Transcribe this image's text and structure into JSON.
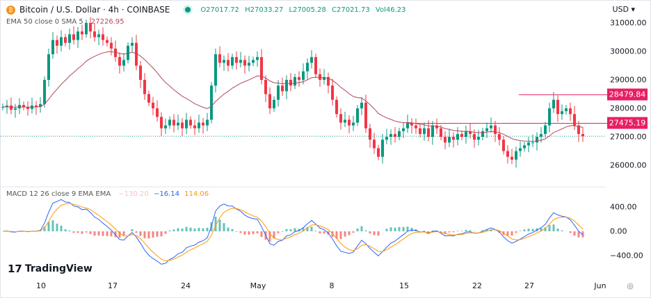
{
  "header": {
    "symbol": "Bitcoin / U.S. Dollar · 4h · COINBASE",
    "open": "O27017.72",
    "high": "H27033.27",
    "low": "L27005.28",
    "close": "C27021.73",
    "volume": "Vol46.23"
  },
  "ema_indicator": {
    "label": "EMA 50 close 0 SMA 5",
    "value": "27226.95"
  },
  "macd_indicator": {
    "label": "MACD 12 26 close 9 EMA EMA",
    "histogram": "−130.20",
    "macd": "−16.14",
    "signal": "114.06"
  },
  "currency": "USD",
  "price_axis": [
    "31000.00",
    "30000.00",
    "29000.00",
    "28000.00",
    "27000.00",
    "26000.00"
  ],
  "macd_axis": [
    "400.00",
    "0.00",
    "−400.00"
  ],
  "levels": [
    {
      "label": "28479.84",
      "value": 28479.84
    },
    {
      "label": "27475.19",
      "value": 27475.19
    }
  ],
  "last_price": 27021.73,
  "time_axis": [
    "10",
    "17",
    "24",
    "May",
    "8",
    "15",
    "22",
    "27",
    "Jun"
  ],
  "brand": "TradingView",
  "colors": {
    "up": "#089981",
    "down": "#f23645",
    "ema": "#b2465a",
    "macd": "#2962ff",
    "signal": "#ff9800",
    "level": "#e91e63"
  },
  "chart_data": {
    "type": "candlestick",
    "interval": "4h",
    "closes": [
      28050,
      28100,
      27950,
      28000,
      28120,
      28050,
      27980,
      28100,
      28050,
      28150,
      29000,
      29900,
      30400,
      30200,
      30500,
      30300,
      30600,
      30400,
      30700,
      30600,
      31000,
      30700,
      30500,
      30600,
      30400,
      30300,
      30100,
      29800,
      29500,
      29700,
      30200,
      30300,
      29500,
      29000,
      28500,
      28200,
      28000,
      27700,
      27300,
      27400,
      27600,
      27400,
      27500,
      27300,
      27600,
      27400,
      27300,
      27500,
      27400,
      27600,
      28800,
      29900,
      29600,
      29700,
      29500,
      29800,
      29600,
      29700,
      29500,
      29600,
      29700,
      29800,
      29000,
      28500,
      28000,
      28300,
      28800,
      28600,
      29000,
      28800,
      29100,
      29000,
      29300,
      29600,
      29800,
      29200,
      29000,
      29100,
      28800,
      28300,
      27800,
      27500,
      27600,
      27400,
      27500,
      28000,
      28200,
      27300,
      26900,
      26600,
      26300,
      26900,
      27000,
      27100,
      27000,
      27200,
      27300,
      27500,
      27400,
      27300,
      27100,
      27300,
      27000,
      27400,
      27300,
      27000,
      26800,
      27000,
      26900,
      27100,
      27000,
      27200,
      27100,
      26900,
      27000,
      27200,
      27300,
      27400,
      27100,
      26900,
      26500,
      26300,
      26200,
      26500,
      26600,
      26700,
      26800,
      26800,
      27000,
      27100,
      27400,
      28000,
      28300,
      27800,
      27900,
      28000,
      27800,
      27400,
      27100,
      27021.73
    ]
  }
}
